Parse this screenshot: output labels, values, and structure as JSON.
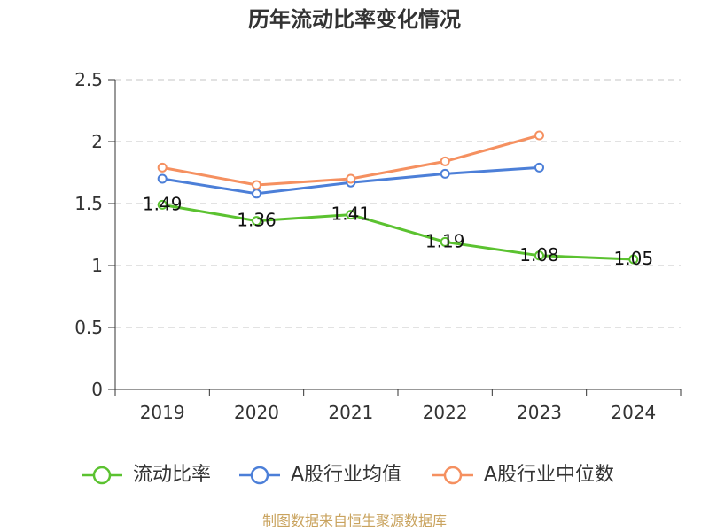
{
  "chart_data": {
    "type": "line",
    "title": "历年流动比率变化情况",
    "categories": [
      "2019",
      "2020",
      "2021",
      "2022",
      "2023",
      "2024"
    ],
    "ylim": [
      0,
      2.5
    ],
    "yticks": [
      0,
      0.5,
      1,
      1.5,
      2,
      2.5
    ],
    "grid": true,
    "legend": "bottom",
    "series": [
      {
        "name": "流动比率",
        "color": "#5bc230",
        "data_labels": true,
        "values": [
          1.49,
          1.36,
          1.41,
          1.19,
          1.08,
          1.05
        ]
      },
      {
        "name": "A股行业均值",
        "color": "#4c7fd8",
        "data_labels": false,
        "values": [
          1.7,
          1.58,
          1.67,
          1.74,
          1.79,
          null
        ]
      },
      {
        "name": "A股行业中位数",
        "color": "#f59060",
        "data_labels": false,
        "values": [
          1.79,
          1.65,
          1.7,
          1.84,
          2.05,
          null
        ]
      }
    ]
  },
  "footer": {
    "source": "制图数据来自恒生聚源数据库"
  }
}
